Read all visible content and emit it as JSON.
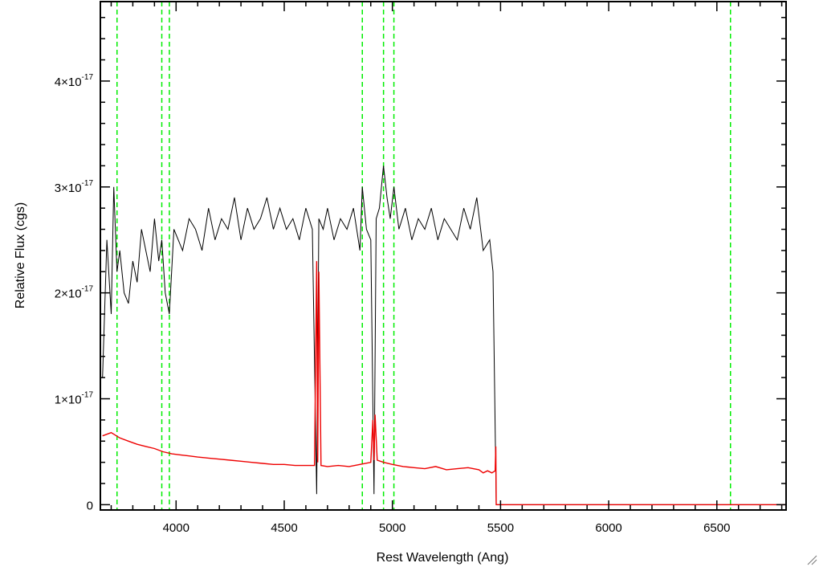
{
  "chart_data": {
    "type": "line",
    "title": "",
    "xlabel": "Rest Wavelength (Ang)",
    "ylabel": "Relative Flux (cgs)",
    "xlim": [
      3650,
      6820
    ],
    "ylim": [
      -5e-19,
      4.75e-17
    ],
    "x_ticks": [
      {
        "value": 4000,
        "label": "4000"
      },
      {
        "value": 4500,
        "label": "4500"
      },
      {
        "value": 5000,
        "label": "5000"
      },
      {
        "value": 5500,
        "label": "5500"
      },
      {
        "value": 6000,
        "label": "6000"
      },
      {
        "value": 6500,
        "label": "6500"
      }
    ],
    "y_ticks": [
      {
        "value": 0,
        "label": "0",
        "exp": ""
      },
      {
        "value": 1e-17,
        "label": "1×10",
        "exp": "-17"
      },
      {
        "value": 2e-17,
        "label": "2×10",
        "exp": "-17"
      },
      {
        "value": 3e-17,
        "label": "3×10",
        "exp": "-17"
      },
      {
        "value": 4e-17,
        "label": "4×10",
        "exp": "-17"
      }
    ],
    "grid": false,
    "legend": "none",
    "reference_lines": {
      "color": "#00ee00",
      "style": "dashed",
      "x": [
        3727,
        3934,
        3969,
        4861,
        4959,
        5007,
        6563
      ]
    },
    "series": [
      {
        "color": "#000000",
        "role": "flux",
        "x": [
          3660,
          3680,
          3700,
          3712,
          3727,
          3740,
          3760,
          3780,
          3800,
          3820,
          3840,
          3860,
          3880,
          3900,
          3920,
          3934,
          3950,
          3969,
          3990,
          4010,
          4030,
          4060,
          4090,
          4120,
          4150,
          4180,
          4210,
          4240,
          4270,
          4300,
          4330,
          4360,
          4390,
          4420,
          4450,
          4480,
          4510,
          4540,
          4570,
          4600,
          4630,
          4650,
          4660,
          4680,
          4700,
          4730,
          4760,
          4790,
          4820,
          4850,
          4861,
          4880,
          4900,
          4915,
          4925,
          4940,
          4959,
          4975,
          4990,
          5007,
          5030,
          5060,
          5090,
          5120,
          5150,
          5180,
          5210,
          5240,
          5270,
          5300,
          5330,
          5360,
          5390,
          5420,
          5450,
          5465,
          5480,
          5500,
          5600,
          5700,
          5800,
          5900,
          6000,
          6200,
          6400,
          6600,
          6820
        ],
        "y": [
          1.2e-17,
          2.5e-17,
          1.8e-17,
          3e-17,
          2.2e-17,
          2.4e-17,
          2e-17,
          1.9e-17,
          2.3e-17,
          2.1e-17,
          2.6e-17,
          2.4e-17,
          2.2e-17,
          2.7e-17,
          2.3e-17,
          2.5e-17,
          2e-17,
          1.8e-17,
          2.6e-17,
          2.5e-17,
          2.4e-17,
          2.7e-17,
          2.6e-17,
          2.4e-17,
          2.8e-17,
          2.5e-17,
          2.7e-17,
          2.6e-17,
          2.9e-17,
          2.5e-17,
          2.8e-17,
          2.6e-17,
          2.7e-17,
          2.9e-17,
          2.6e-17,
          2.8e-17,
          2.6e-17,
          2.7e-17,
          2.5e-17,
          2.8e-17,
          2.6e-17,
          1e-18,
          2.7e-17,
          2.6e-17,
          2.8e-17,
          2.5e-17,
          2.7e-17,
          2.6e-17,
          2.8e-17,
          2.4e-17,
          3e-17,
          2.6e-17,
          2.5e-17,
          1e-18,
          2.7e-17,
          2.8e-17,
          3.2e-17,
          2.9e-17,
          2.7e-17,
          3e-17,
          2.6e-17,
          2.8e-17,
          2.5e-17,
          2.7e-17,
          2.6e-17,
          2.8e-17,
          2.5e-17,
          2.7e-17,
          2.6e-17,
          2.5e-17,
          2.8e-17,
          2.6e-17,
          2.9e-17,
          2.4e-17,
          2.5e-17,
          2.2e-17,
          0,
          0,
          0,
          0,
          0,
          0,
          0,
          0,
          0,
          0,
          0
        ]
      },
      {
        "color": "#ee0000",
        "role": "error",
        "x": [
          3660,
          3700,
          3740,
          3780,
          3820,
          3860,
          3900,
          3940,
          3980,
          4020,
          4060,
          4100,
          4150,
          4200,
          4250,
          4300,
          4350,
          4400,
          4450,
          4500,
          4550,
          4600,
          4640,
          4650,
          4655,
          4660,
          4670,
          4700,
          4750,
          4800,
          4850,
          4900,
          4910,
          4915,
          4920,
          4930,
          4960,
          5000,
          5050,
          5100,
          5150,
          5200,
          5250,
          5300,
          5350,
          5400,
          5420,
          5440,
          5460,
          5475,
          5478,
          5480,
          5500,
          5700,
          6000,
          6400,
          6820
        ],
        "y": [
          6.5e-18,
          6.8e-18,
          6.3e-18,
          6e-18,
          5.7e-18,
          5.5e-18,
          5.3e-18,
          5e-18,
          4.8e-18,
          4.7e-18,
          4.6e-18,
          4.5e-18,
          4.4e-18,
          4.3e-18,
          4.2e-18,
          4.1e-18,
          4e-18,
          3.9e-18,
          3.8e-18,
          3.8e-18,
          3.7e-18,
          3.7e-18,
          3.7e-18,
          2.3e-17,
          4e-18,
          2.2e-17,
          3.7e-18,
          3.6e-18,
          3.7e-18,
          3.6e-18,
          3.8e-18,
          4e-18,
          8e-18,
          4.2e-18,
          8.5e-18,
          4.2e-18,
          4e-18,
          3.8e-18,
          3.6e-18,
          3.5e-18,
          3.4e-18,
          3.6e-18,
          3.3e-18,
          3.4e-18,
          3.5e-18,
          3.3e-18,
          3e-18,
          3.2e-18,
          3e-18,
          3.2e-18,
          5.5e-18,
          0,
          0,
          0,
          0,
          0,
          0
        ]
      }
    ]
  }
}
